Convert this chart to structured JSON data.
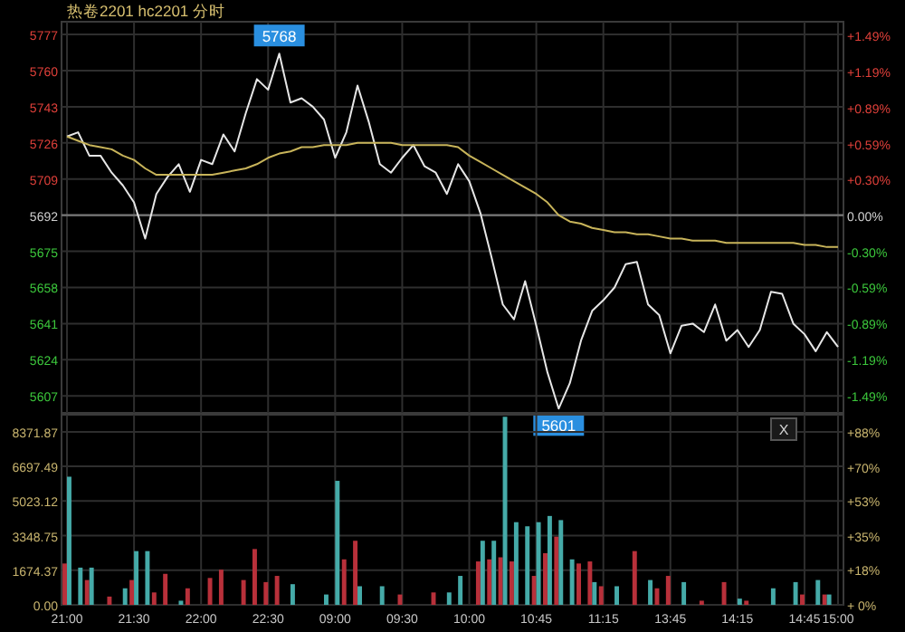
{
  "chart_data": [
    {
      "type": "line",
      "title": "热卷2201 hc2201 分时",
      "tick_labels": "y",
      "grid": true,
      "categories": [
        null,
        null,
        null,
        null,
        null,
        null,
        null,
        null,
        null,
        null,
        null,
        null,
        null,
        null,
        null,
        null,
        null,
        null,
        null,
        null,
        null,
        null,
        null,
        null,
        null,
        null,
        null,
        null,
        null,
        null,
        null,
        null,
        null,
        null,
        null,
        null,
        null,
        null,
        null,
        null,
        null,
        null,
        null,
        null,
        null,
        null,
        null,
        null,
        null,
        null,
        null,
        null,
        null,
        null,
        null,
        null,
        null,
        null,
        null,
        null,
        null,
        null,
        null,
        null,
        null,
        null,
        null,
        null,
        null,
        null
      ],
      "ylim": [
        5599,
        5783
      ],
      "yticks": [
        5607,
        5624,
        5641,
        5658,
        5675,
        5692,
        5709,
        5726,
        5743,
        5760,
        5777
      ],
      "y2lim": [
        -1.63,
        1.6
      ],
      "y2ticks": [
        {
          "value": -1.49,
          "label": "-1.49%"
        },
        {
          "value": -1.19,
          "label": "-1.19%"
        },
        {
          "value": -0.89,
          "label": "-0.89%"
        },
        {
          "value": -0.59,
          "label": "-0.59%"
        },
        {
          "value": -0.3,
          "label": "-0.30%"
        },
        {
          "value": 0,
          "label": "0.00%"
        },
        {
          "value": 0.3,
          "label": "+0.30%"
        },
        {
          "value": 0.59,
          "label": "+0.59%"
        },
        {
          "value": 0.89,
          "label": "+0.89%"
        },
        {
          "value": 1.19,
          "label": "+1.19%"
        },
        {
          "value": 1.49,
          "label": "+1.49%"
        }
      ],
      "ref_lines": [
        {
          "axis": "y",
          "value": 5692,
          "color": "#777777"
        }
      ],
      "annotations": [
        {
          "text": "5768",
          "y": 5768
        },
        {
          "text": "5601",
          "y": 5601
        }
      ],
      "series": [
        {
          "color": "#e6e6e6",
          "values": [
            5729,
            5731,
            5720,
            5720,
            5712,
            5706,
            5698,
            5681,
            5702,
            5710,
            5716,
            5703,
            5718,
            5716,
            5730,
            5722,
            5740,
            5756,
            5751,
            5768,
            5745,
            5747,
            5743,
            5737,
            5719,
            5731,
            5753,
            5736,
            5716,
            5712,
            5719,
            5725,
            5715,
            5712,
            5702,
            5716,
            5708,
            5693,
            5672,
            5650,
            5643,
            5661,
            5640,
            5618,
            5601,
            5613,
            5633,
            5647,
            5652,
            5658,
            5669,
            5670,
            5650,
            5645,
            5627,
            5640,
            5641,
            5637,
            5650,
            5633,
            5638,
            5630,
            5638,
            5656,
            5655,
            5641,
            5636,
            5628,
            5637,
            5630
          ]
        },
        {
          "color": "#c8b45a",
          "values": [
            5729,
            5727,
            5725,
            5724,
            5723,
            5720,
            5718,
            5714,
            5711,
            5711,
            5711,
            5711,
            5711,
            5711,
            5712,
            5713,
            5714,
            5716,
            5719,
            5721,
            5722,
            5724,
            5724,
            5725,
            5725,
            5725,
            5726,
            5726,
            5726,
            5726,
            5725,
            5725,
            5725,
            5725,
            5725,
            5724,
            5720,
            5717,
            5714,
            5711,
            5708,
            5705,
            5702,
            5698,
            5692,
            5689,
            5688,
            5686,
            5685,
            5684,
            5684,
            5683,
            5683,
            5682,
            5681,
            5681,
            5680,
            5680,
            5680,
            5679,
            5679,
            5679,
            5679,
            5679,
            5679,
            5679,
            5678,
            5678,
            5677,
            5677
          ]
        }
      ]
    },
    {
      "type": "bar",
      "grid": true,
      "categories": [
        "21:00",
        null,
        null,
        null,
        null,
        null,
        "21:30",
        null,
        null,
        null,
        null,
        null,
        "22:00",
        null,
        null,
        null,
        null,
        null,
        "22:30",
        null,
        null,
        null,
        null,
        null,
        "09:00",
        null,
        null,
        null,
        null,
        null,
        "09:30",
        null,
        null,
        null,
        null,
        null,
        "10:00",
        null,
        null,
        null,
        null,
        null,
        "10:45",
        null,
        null,
        null,
        null,
        null,
        "11:15",
        null,
        null,
        null,
        null,
        null,
        "13:45",
        null,
        null,
        null,
        null,
        null,
        "14:15",
        null,
        null,
        null,
        null,
        null,
        "14:45",
        null,
        null,
        "15:00"
      ],
      "ylim": [
        0,
        9200
      ],
      "yticks": [
        {
          "value": 0,
          "label": "0.00"
        },
        {
          "value": 1674.37,
          "label": "1674.37"
        },
        {
          "value": 3348.75,
          "label": "3348.75"
        },
        {
          "value": 5023.12,
          "label": "5023.12"
        },
        {
          "value": 6697.49,
          "label": "6697.49"
        },
        {
          "value": 8371.87,
          "label": "8371.87"
        }
      ],
      "y2lim": [
        0,
        96.7
      ],
      "y2ticks": [
        {
          "value": 0,
          "label": "+ 0%"
        },
        {
          "value": 18,
          "label": "+18%"
        },
        {
          "value": 35,
          "label": "+35%"
        },
        {
          "value": 53,
          "label": "+53%"
        },
        {
          "value": 70,
          "label": "+70%"
        },
        {
          "value": 88,
          "label": "+88%"
        }
      ],
      "annotations": [
        "X"
      ],
      "series": [
        {
          "color": "#b8303a",
          "values": [
            2000,
            null,
            1200,
            null,
            400,
            null,
            1200,
            null,
            600,
            1500,
            null,
            800,
            null,
            1300,
            1700,
            null,
            1200,
            2700,
            1100,
            1400,
            null,
            null,
            null,
            null,
            null,
            2200,
            3100,
            null,
            null,
            null,
            500,
            null,
            null,
            600,
            null,
            null,
            null,
            2100,
            2200,
            2300,
            2100,
            null,
            1400,
            2500,
            3300,
            null,
            2000,
            2100,
            900,
            null,
            null,
            2600,
            null,
            800,
            1400,
            null,
            null,
            200,
            null,
            1100,
            null,
            200,
            null,
            null,
            null,
            null,
            500,
            null,
            500,
            null
          ]
        },
        {
          "color": "#45aaa8",
          "values": [
            6200,
            1800,
            1800,
            null,
            null,
            800,
            2600,
            2600,
            null,
            null,
            200,
            null,
            null,
            null,
            null,
            null,
            null,
            null,
            null,
            null,
            1000,
            null,
            null,
            500,
            6000,
            null,
            900,
            null,
            900,
            null,
            null,
            null,
            null,
            null,
            600,
            1400,
            null,
            3100,
            3100,
            9100,
            4000,
            3800,
            4000,
            4300,
            4100,
            2200,
            null,
            1100,
            null,
            900,
            null,
            null,
            1200,
            null,
            null,
            1100,
            null,
            null,
            null,
            null,
            300,
            null,
            null,
            800,
            null,
            1100,
            null,
            1200,
            500,
            null
          ]
        }
      ]
    }
  ]
}
